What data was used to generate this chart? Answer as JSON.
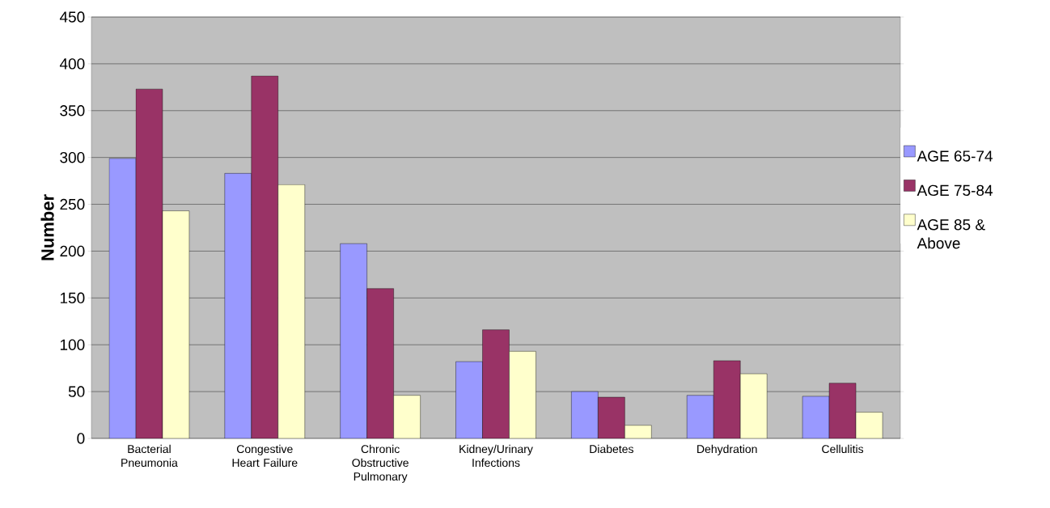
{
  "chart_data": {
    "type": "bar",
    "ylabel": "Number",
    "categories": [
      "Bacterial Pneumonia",
      "Congestive Heart Failure",
      "Chronic Obstructive Pulmonary",
      "Kidney/Urinary Infections",
      "Diabetes",
      "Dehydration",
      "Cellulitis"
    ],
    "series": [
      {
        "name": "AGE 65-74",
        "color": "#9999ff",
        "values": [
          299,
          283,
          208,
          82,
          50,
          46,
          45
        ]
      },
      {
        "name": "AGE 75-84",
        "color": "#993366",
        "values": [
          373,
          387,
          160,
          116,
          44,
          83,
          59
        ]
      },
      {
        "name": "AGE 85 & Above",
        "color": "#ffffcc",
        "values": [
          243,
          271,
          46,
          93,
          14,
          69,
          28
        ]
      }
    ],
    "ylim": [
      0,
      450
    ],
    "yticks": [
      0,
      50,
      100,
      150,
      200,
      250,
      300,
      350,
      400,
      450
    ],
    "grid": "y",
    "legend": "right"
  }
}
